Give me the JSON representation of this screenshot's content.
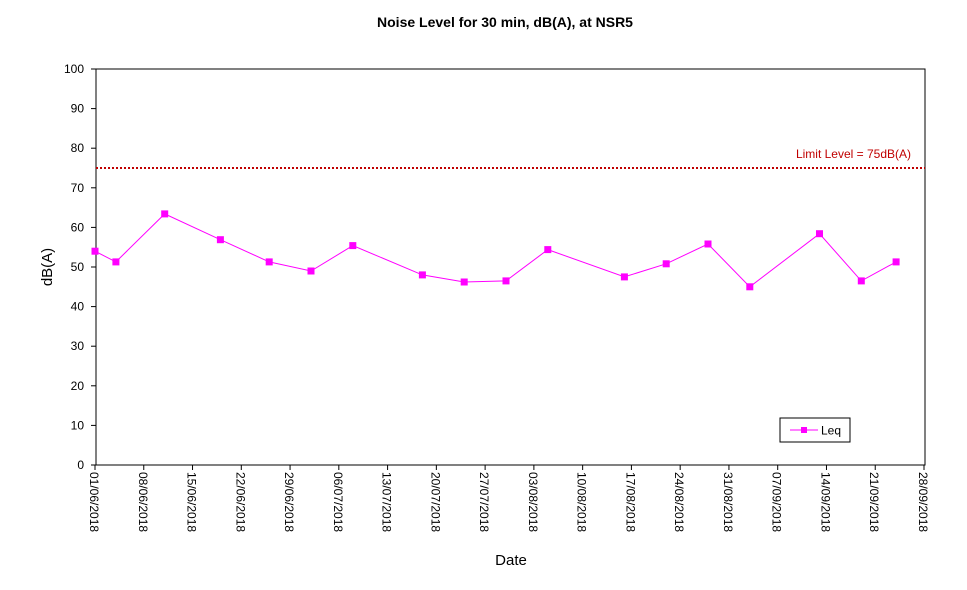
{
  "chart_data": {
    "type": "line",
    "title": "Noise Level for 30 min, dB(A), at NSR5",
    "xlabel": "Date",
    "ylabel": "dB(A)",
    "ylim": [
      0,
      100
    ],
    "yticks": [
      0,
      10,
      20,
      30,
      40,
      50,
      60,
      70,
      80,
      90,
      100
    ],
    "xlim": [
      "2018-06-01",
      "2018-09-28"
    ],
    "xticks": [
      "01/06/2018",
      "08/06/2018",
      "15/06/2018",
      "22/06/2018",
      "29/06/2018",
      "06/07/2018",
      "13/07/2018",
      "20/07/2018",
      "27/07/2018",
      "03/08/2018",
      "10/08/2018",
      "17/08/2018",
      "24/08/2018",
      "31/08/2018",
      "07/09/2018",
      "14/09/2018",
      "21/09/2018",
      "28/09/2018"
    ],
    "grid": false,
    "legend": {
      "placement": "bottom-right"
    },
    "series": [
      {
        "name": "Leq",
        "color": "#ff00ff",
        "marker": "square",
        "points": [
          {
            "x": "2018-06-01",
            "y": 54.0
          },
          {
            "x": "2018-06-04",
            "y": 51.3
          },
          {
            "x": "2018-06-11",
            "y": 63.4
          },
          {
            "x": "2018-06-19",
            "y": 56.9
          },
          {
            "x": "2018-06-26",
            "y": 51.3
          },
          {
            "x": "2018-07-02",
            "y": 49.0
          },
          {
            "x": "2018-07-08",
            "y": 55.4
          },
          {
            "x": "2018-07-18",
            "y": 48.0
          },
          {
            "x": "2018-07-24",
            "y": 46.2
          },
          {
            "x": "2018-07-30",
            "y": 46.5
          },
          {
            "x": "2018-08-05",
            "y": 54.4
          },
          {
            "x": "2018-08-16",
            "y": 47.5
          },
          {
            "x": "2018-08-22",
            "y": 50.8
          },
          {
            "x": "2018-08-28",
            "y": 55.8
          },
          {
            "x": "2018-09-03",
            "y": 45.0
          },
          {
            "x": "2018-09-13",
            "y": 58.4
          },
          {
            "x": "2018-09-19",
            "y": 46.5
          },
          {
            "x": "2018-09-24",
            "y": 51.3
          }
        ]
      }
    ],
    "reference_line": {
      "label": "Limit Level  = 75dB(A)",
      "y": 75,
      "color": "#c00000",
      "style": "dotted"
    }
  }
}
